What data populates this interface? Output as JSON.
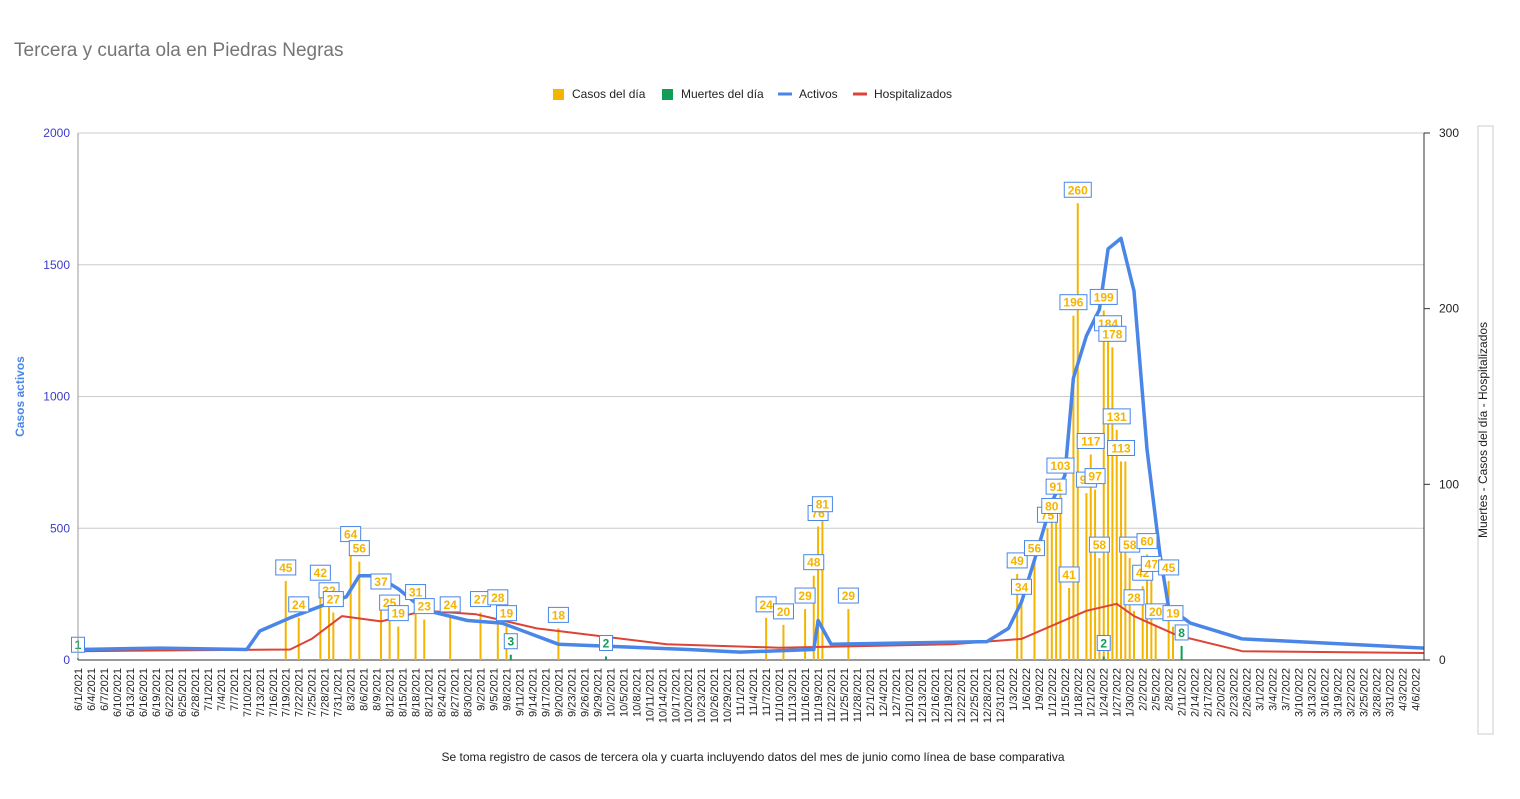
{
  "chart_data": {
    "type": "bar+line",
    "title": "Tercera y cuarta ola en Piedras Negras",
    "subtitle": "",
    "footnote": "Se toma registro de casos de tercera ola y cuarta incluyendo datos del mes de junio como línea de base comparativa",
    "legend_position": "top",
    "grid": true,
    "left_axis": {
      "label": "Casos activos",
      "ylim": [
        0,
        2000
      ],
      "ticks": [
        "0",
        "500",
        "1000",
        "1500",
        "2000"
      ],
      "color": "#3c3cc8"
    },
    "right_axis": {
      "label": "Muertes - Casos del día - Hospitalizados",
      "ylim": [
        0,
        300
      ],
      "ticks": [
        "0",
        "100",
        "200",
        "300"
      ]
    },
    "x_range": [
      "6/1/2021",
      "4/8/2022"
    ],
    "x_tick_labels": [
      "6/1/2021",
      "6/4/2021",
      "6/7/2021",
      "6/10/2021",
      "6/13/2021",
      "6/16/2021",
      "6/19/2021",
      "6/22/2021",
      "6/25/2021",
      "6/28/2021",
      "7/1/2021",
      "7/4/2021",
      "7/7/2021",
      "7/10/2021",
      "7/13/2021",
      "7/16/2021",
      "7/19/2021",
      "7/22/2021",
      "7/25/2021",
      "7/28/2021",
      "7/31/2021",
      "8/3/2021",
      "8/6/2021",
      "8/9/2021",
      "8/12/2021",
      "8/15/2021",
      "8/18/2021",
      "8/21/2021",
      "8/24/2021",
      "8/27/2021",
      "8/30/2021",
      "9/2/2021",
      "9/5/2021",
      "9/8/2021",
      "9/11/2021",
      "9/14/2021",
      "9/17/2021",
      "9/20/2021",
      "9/23/2021",
      "9/26/2021",
      "9/29/2021",
      "10/2/2021",
      "10/5/2021",
      "10/8/2021",
      "10/11/2021",
      "10/14/2021",
      "10/17/2021",
      "10/20/2021",
      "10/23/2021",
      "10/26/2021",
      "10/29/2021",
      "11/1/2021",
      "11/4/2021",
      "11/7/2021",
      "11/10/2021",
      "11/13/2021",
      "11/16/2021",
      "11/19/2021",
      "11/22/2021",
      "11/25/2021",
      "11/28/2021",
      "12/1/2021",
      "12/4/2021",
      "12/7/2021",
      "12/10/2021",
      "12/13/2021",
      "12/16/2021",
      "12/19/2021",
      "12/22/2021",
      "12/25/2021",
      "12/28/2021",
      "12/31/2021",
      "1/3/2022",
      "1/6/2022",
      "1/9/2022",
      "1/12/2022",
      "1/15/2022",
      "1/18/2022",
      "1/21/2022",
      "1/24/2022",
      "1/27/2022",
      "1/30/2022",
      "2/2/2022",
      "2/5/2022",
      "2/8/2022",
      "2/11/2022",
      "2/14/2022",
      "2/17/2022",
      "2/20/2022",
      "2/23/2022",
      "2/26/2022",
      "3/1/2022",
      "3/4/2022",
      "3/7/2022",
      "3/10/2022",
      "3/13/2022",
      "3/16/2022",
      "3/19/2022",
      "3/22/2022",
      "3/25/2022",
      "3/28/2022",
      "3/31/2022",
      "4/3/2022",
      "4/6/2022"
    ],
    "series": [
      {
        "name": "Casos del día",
        "type": "bar",
        "axis": "right",
        "color": "#f4b400",
        "points": [
          [
            "7/19/2021",
            45
          ],
          [
            "7/22/2021",
            24
          ],
          [
            "7/27/2021",
            42
          ],
          [
            "7/29/2021",
            32
          ],
          [
            "7/30/2021",
            27
          ],
          [
            "8/3/2021",
            64
          ],
          [
            "8/5/2021",
            56
          ],
          [
            "8/10/2021",
            37
          ],
          [
            "8/12/2021",
            25
          ],
          [
            "8/14/2021",
            19
          ],
          [
            "8/18/2021",
            31
          ],
          [
            "8/20/2021",
            23
          ],
          [
            "8/26/2021",
            24
          ],
          [
            "9/2/2021",
            27
          ],
          [
            "9/6/2021",
            28
          ],
          [
            "9/8/2021",
            19
          ],
          [
            "9/20/2021",
            18
          ],
          [
            "11/7/2021",
            24
          ],
          [
            "11/11/2021",
            20
          ],
          [
            "11/16/2021",
            29
          ],
          [
            "11/18/2021",
            48
          ],
          [
            "11/19/2021",
            76
          ],
          [
            "11/20/2021",
            81
          ],
          [
            "11/26/2021",
            29
          ],
          [
            "1/4/2022",
            49
          ],
          [
            "1/5/2022",
            34
          ],
          [
            "1/8/2022",
            56
          ],
          [
            "1/11/2022",
            75
          ],
          [
            "1/12/2022",
            80
          ],
          [
            "1/13/2022",
            91
          ],
          [
            "1/14/2022",
            103
          ],
          [
            "1/16/2022",
            41
          ],
          [
            "1/17/2022",
            196
          ],
          [
            "1/18/2022",
            260
          ],
          [
            "1/20/2022",
            95
          ],
          [
            "1/21/2022",
            117
          ],
          [
            "1/22/2022",
            97
          ],
          [
            "1/23/2022",
            58
          ],
          [
            "1/24/2022",
            199
          ],
          [
            "1/25/2022",
            184
          ],
          [
            "1/26/2022",
            178
          ],
          [
            "1/27/2022",
            131
          ],
          [
            "1/28/2022",
            113
          ],
          [
            "1/29/2022",
            113
          ],
          [
            "1/30/2022",
            58
          ],
          [
            "1/31/2022",
            28
          ],
          [
            "2/2/2022",
            42
          ],
          [
            "2/3/2022",
            60
          ],
          [
            "2/4/2022",
            47
          ],
          [
            "2/5/2022",
            20
          ],
          [
            "2/8/2022",
            45
          ],
          [
            "2/9/2022",
            19
          ]
        ]
      },
      {
        "name": "Muertes del día",
        "type": "bar",
        "axis": "right",
        "color": "#0f9d58",
        "points": [
          [
            "6/1/2021",
            1
          ],
          [
            "9/9/2021",
            3
          ],
          [
            "10/1/2021",
            2
          ],
          [
            "1/24/2022",
            2
          ],
          [
            "2/11/2022",
            8
          ]
        ]
      },
      {
        "name": "Activos",
        "type": "line",
        "axis": "left",
        "color": "#4a86e8",
        "points": [
          [
            "6/1/2021",
            40
          ],
          [
            "6/20/2021",
            45
          ],
          [
            "7/10/2021",
            40
          ],
          [
            "7/13/2021",
            110
          ],
          [
            "7/20/2021",
            160
          ],
          [
            "7/28/2021",
            210
          ],
          [
            "8/2/2021",
            240
          ],
          [
            "8/5/2021",
            320
          ],
          [
            "8/9/2021",
            320
          ],
          [
            "8/14/2021",
            270
          ],
          [
            "8/20/2021",
            190
          ],
          [
            "8/30/2021",
            150
          ],
          [
            "9/7/2021",
            140
          ],
          [
            "9/20/2021",
            60
          ],
          [
            "10/20/2021",
            40
          ],
          [
            "11/1/2021",
            30
          ],
          [
            "11/18/2021",
            40
          ],
          [
            "11/19/2021",
            150
          ],
          [
            "11/22/2021",
            60
          ],
          [
            "12/28/2021",
            70
          ],
          [
            "1/2/2022",
            120
          ],
          [
            "1/5/2022",
            220
          ],
          [
            "1/8/2022",
            380
          ],
          [
            "1/12/2022",
            600
          ],
          [
            "1/15/2022",
            700
          ],
          [
            "1/17/2022",
            1070
          ],
          [
            "1/20/2022",
            1230
          ],
          [
            "1/23/2022",
            1330
          ],
          [
            "1/25/2022",
            1560
          ],
          [
            "1/28/2022",
            1600
          ],
          [
            "1/31/2022",
            1400
          ],
          [
            "2/3/2022",
            800
          ],
          [
            "2/6/2022",
            400
          ],
          [
            "2/8/2022",
            200
          ],
          [
            "2/13/2022",
            140
          ],
          [
            "2/25/2022",
            80
          ],
          [
            "4/8/2022",
            45
          ]
        ]
      },
      {
        "name": "Hospitalizados",
        "type": "line",
        "axis": "right",
        "color": "#db4437",
        "points": [
          [
            "6/1/2021",
            5
          ],
          [
            "7/20/2021",
            6
          ],
          [
            "7/25/2021",
            12
          ],
          [
            "8/1/2021",
            25
          ],
          [
            "8/10/2021",
            22
          ],
          [
            "8/20/2021",
            28
          ],
          [
            "9/1/2021",
            26
          ],
          [
            "9/15/2021",
            18
          ],
          [
            "10/15/2021",
            9
          ],
          [
            "11/10/2021",
            7
          ],
          [
            "12/20/2021",
            9
          ],
          [
            "1/5/2022",
            12
          ],
          [
            "1/20/2022",
            28
          ],
          [
            "1/27/2022",
            32
          ],
          [
            "1/31/2022",
            25
          ],
          [
            "2/10/2022",
            14
          ],
          [
            "2/25/2022",
            5
          ],
          [
            "4/8/2022",
            4
          ]
        ]
      }
    ],
    "data_labels": {
      "casos": [
        {
          "d": "7/19/2021",
          "t": "45"
        },
        {
          "d": "7/22/2021",
          "t": "24"
        },
        {
          "d": "7/27/2021",
          "t": "42"
        },
        {
          "d": "7/29/2021",
          "t": "32"
        },
        {
          "d": "7/30/2021",
          "t": "27"
        },
        {
          "d": "8/3/2021",
          "t": "64"
        },
        {
          "d": "8/5/2021",
          "t": "56"
        },
        {
          "d": "8/10/2021",
          "t": "37"
        },
        {
          "d": "8/12/2021",
          "t": "25"
        },
        {
          "d": "8/14/2021",
          "t": "19"
        },
        {
          "d": "8/18/2021",
          "t": "31"
        },
        {
          "d": "8/20/2021",
          "t": "23"
        },
        {
          "d": "8/26/2021",
          "t": "24"
        },
        {
          "d": "9/2/2021",
          "t": "27"
        },
        {
          "d": "9/6/2021",
          "t": "28"
        },
        {
          "d": "9/8/2021",
          "t": "19"
        },
        {
          "d": "9/20/2021",
          "t": "18"
        },
        {
          "d": "11/7/2021",
          "t": "24"
        },
        {
          "d": "11/11/2021",
          "t": "20"
        },
        {
          "d": "11/16/2021",
          "t": "29"
        },
        {
          "d": "11/18/2021",
          "t": "48"
        },
        {
          "d": "11/19/2021",
          "t": "76"
        },
        {
          "d": "11/20/2021",
          "t": "81"
        },
        {
          "d": "11/26/2021",
          "t": "29"
        },
        {
          "d": "1/4/2022",
          "t": "49"
        },
        {
          "d": "1/5/2022",
          "t": "34"
        },
        {
          "d": "1/8/2022",
          "t": "56"
        },
        {
          "d": "1/11/2022",
          "t": "75"
        },
        {
          "d": "1/12/2022",
          "t": "80"
        },
        {
          "d": "1/13/2022",
          "t": "91"
        },
        {
          "d": "1/14/2022",
          "t": "103"
        },
        {
          "d": "1/16/2022",
          "t": "41"
        },
        {
          "d": "1/17/2022",
          "t": "196"
        },
        {
          "d": "1/18/2022",
          "t": "260"
        },
        {
          "d": "1/20/2022",
          "t": "95"
        },
        {
          "d": "1/21/2022",
          "t": "117"
        },
        {
          "d": "1/22/2022",
          "t": "97"
        },
        {
          "d": "1/23/2022",
          "t": "58"
        },
        {
          "d": "1/24/2022",
          "t": "199"
        },
        {
          "d": "1/25/2022",
          "t": "184"
        },
        {
          "d": "1/26/2022",
          "t": "178"
        },
        {
          "d": "1/27/2022",
          "t": "131"
        },
        {
          "d": "1/28/2022",
          "t": "113"
        },
        {
          "d": "1/30/2022",
          "t": "58"
        },
        {
          "d": "1/31/2022",
          "t": "28"
        },
        {
          "d": "2/2/2022",
          "t": "42"
        },
        {
          "d": "2/3/2022",
          "t": "60"
        },
        {
          "d": "2/4/2022",
          "t": "47"
        },
        {
          "d": "2/5/2022",
          "t": "20"
        },
        {
          "d": "2/8/2022",
          "t": "45"
        },
        {
          "d": "2/9/2022",
          "t": "19"
        }
      ],
      "muertes": [
        {
          "d": "6/1/2021",
          "t": "1"
        },
        {
          "d": "9/9/2021",
          "t": "3"
        },
        {
          "d": "10/1/2021",
          "t": "2"
        },
        {
          "d": "1/24/2022",
          "t": "2"
        },
        {
          "d": "2/11/2022",
          "t": "8"
        }
      ]
    }
  }
}
